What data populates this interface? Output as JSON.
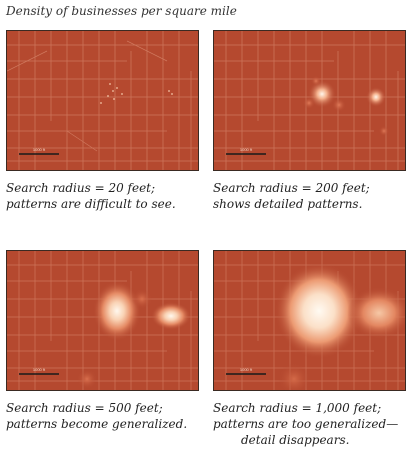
{
  "title": "Density of businesses per square mile",
  "panels": [
    {
      "scale_label": "1000 ft",
      "caption_line1": "Search radius = 20 feet;",
      "caption_line2": "patterns are difficult to see.",
      "caption_line3": ""
    },
    {
      "scale_label": "1000 ft",
      "caption_line1": "Search radius = 200 feet;",
      "caption_line2": "shows detailed patterns.",
      "caption_line3": ""
    },
    {
      "scale_label": "1000 ft",
      "caption_line1": "Search radius = 500 feet;",
      "caption_line2": "patterns become generalized.",
      "caption_line3": ""
    },
    {
      "scale_label": "1000 ft",
      "caption_line1": "Search radius = 1,000 feet;",
      "caption_line2": "patterns are too generalized—",
      "caption_line3": "detail disappears."
    }
  ],
  "colors": {
    "base": "#b5492f",
    "hot": "#fff6ea",
    "road": "#d98a6c"
  }
}
